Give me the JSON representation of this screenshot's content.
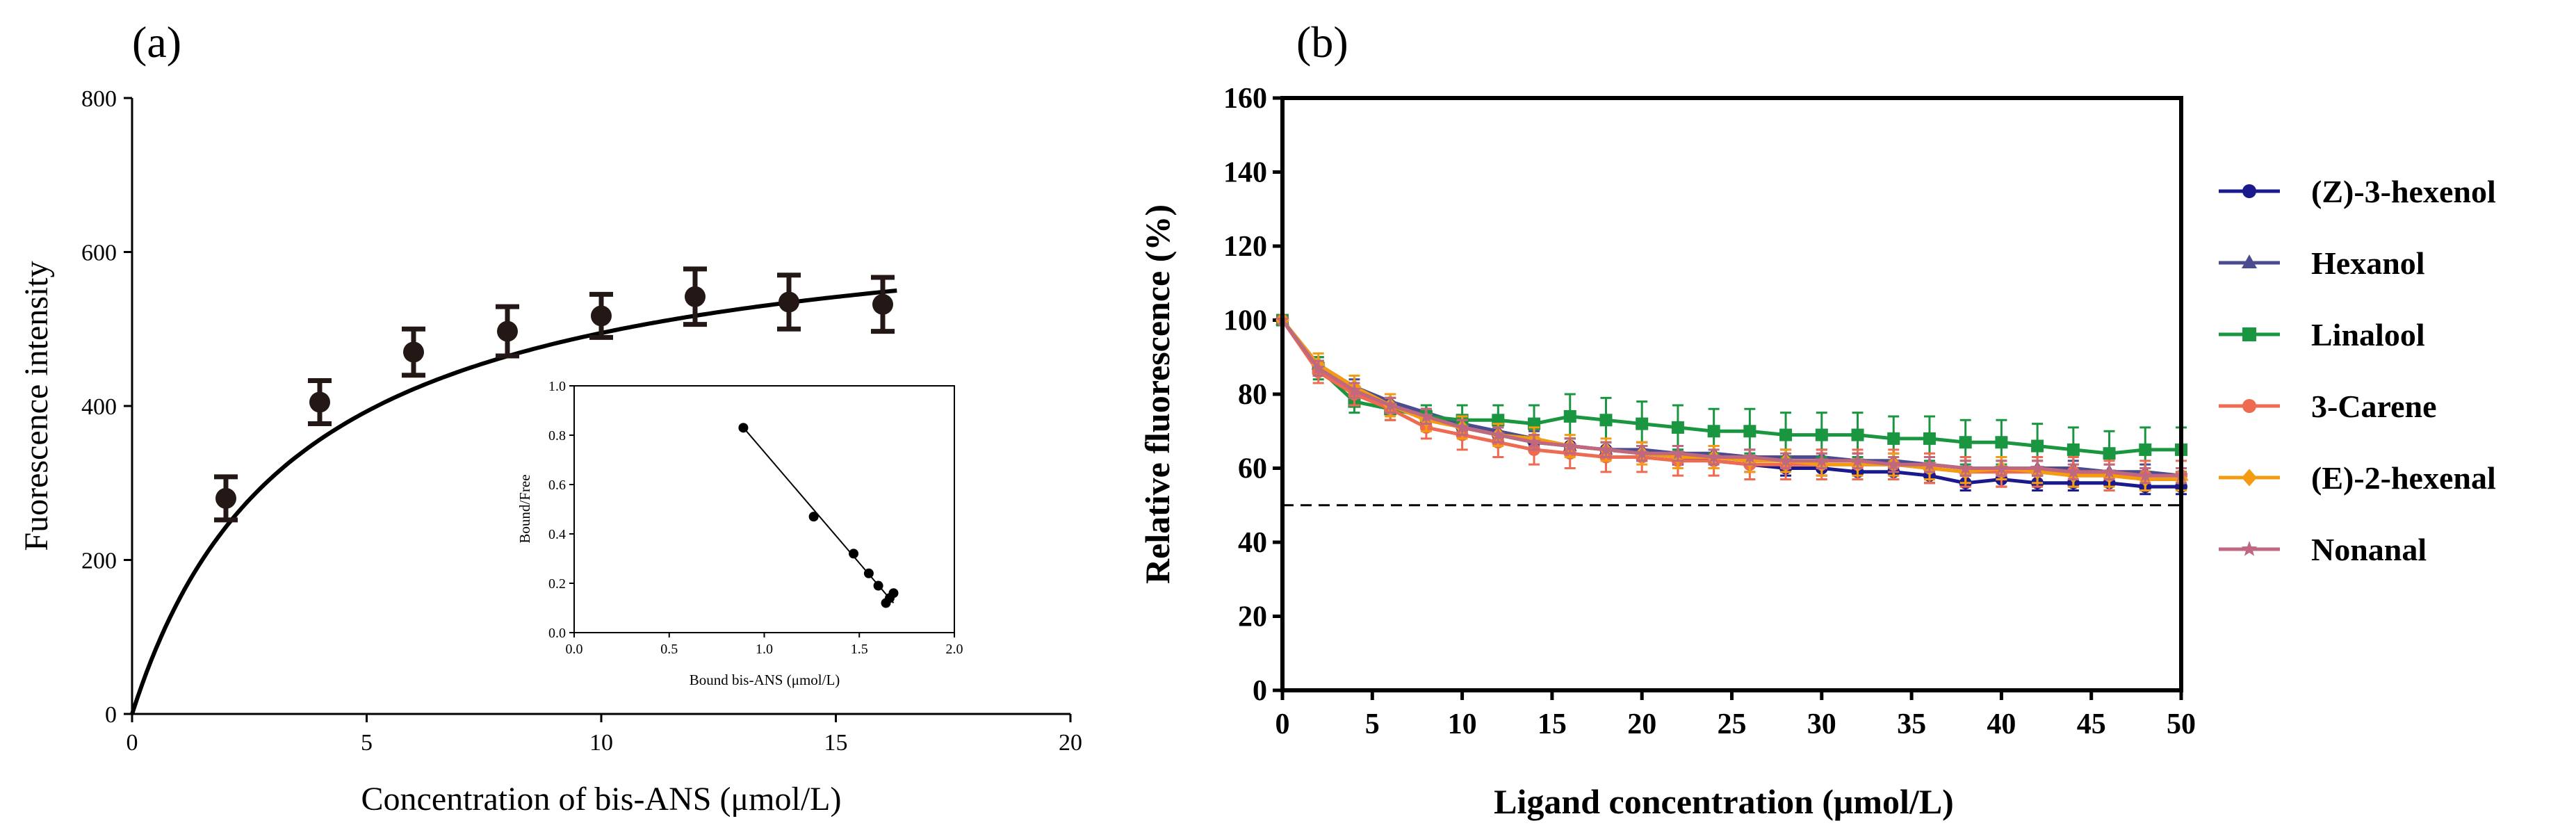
{
  "panels": {
    "a_label": "(a)",
    "b_label": "(b)"
  },
  "chart_data": [
    {
      "id": "a",
      "type": "scatter",
      "xlabel": "Concentration of bis-ANS (μmol/L)",
      "ylabel": "Fuorescence intensity",
      "xlim": [
        0,
        20
      ],
      "ylim": [
        0,
        800
      ],
      "xticks": [
        0,
        5,
        10,
        15,
        20
      ],
      "yticks": [
        0,
        200,
        400,
        600,
        800
      ],
      "series": [
        {
          "x": [
            2,
            4,
            6,
            8,
            10,
            12,
            14,
            16
          ],
          "y": [
            280,
            405,
            470,
            497,
            517,
            542,
            535,
            532
          ],
          "err": [
            28,
            28,
            30,
            32,
            28,
            36,
            35,
            35
          ]
        }
      ],
      "fit": {
        "model": "saturation",
        "bmax": 668,
        "kd": 3.5
      },
      "color": "#231815"
    },
    {
      "id": "a_inset",
      "type": "scatter",
      "xlabel": "Bound bis-ANS (μmol/L)",
      "ylabel": "Bound/Free",
      "xlim": [
        0,
        2
      ],
      "ylim": [
        0,
        1
      ],
      "xticks": [
        "0.0",
        "0.5",
        "1.0",
        "1.5",
        "2.0"
      ],
      "yticks": [
        "0.0",
        "0.2",
        "0.4",
        "0.6",
        "0.8",
        "1.0"
      ],
      "series": [
        {
          "x": [
            0.89,
            1.26,
            1.47,
            1.55,
            1.6,
            1.64,
            1.66,
            1.68
          ],
          "y": [
            0.83,
            0.47,
            0.32,
            0.24,
            0.19,
            0.12,
            0.14,
            0.16
          ]
        }
      ],
      "fit_line": {
        "x": [
          0.88,
          1.68
        ],
        "y": [
          0.84,
          0.12
        ]
      }
    },
    {
      "id": "b",
      "type": "line",
      "xlabel": "Ligand concentration (μmol/L)",
      "ylabel": "Relative fluorescence (%)",
      "xlim": [
        0,
        50
      ],
      "ylim": [
        0,
        160
      ],
      "xticks": [
        0,
        5,
        10,
        15,
        20,
        25,
        30,
        35,
        40,
        45,
        50
      ],
      "yticks": [
        0,
        20,
        40,
        60,
        80,
        100,
        120,
        140,
        160
      ],
      "reference_line_y": 50,
      "legend_position": "right",
      "x": [
        0,
        2,
        4,
        6,
        8,
        10,
        12,
        14,
        16,
        18,
        20,
        22,
        24,
        26,
        28,
        30,
        32,
        34,
        36,
        38,
        40,
        42,
        44,
        46,
        48,
        50
      ],
      "series": [
        {
          "name": "(Z)-3-hexenol",
          "color": "#1a1a8c",
          "marker": "circle",
          "values": [
            100,
            87,
            81,
            77,
            74,
            71,
            69,
            67,
            66,
            65,
            64,
            63,
            62,
            61,
            60,
            60,
            59,
            59,
            58,
            56,
            57,
            56,
            56,
            56,
            55,
            55
          ],
          "err": [
            0,
            2,
            2,
            2,
            2,
            2,
            2,
            2,
            2,
            2,
            2,
            2,
            2,
            2,
            2,
            2,
            2,
            2,
            2,
            2,
            2,
            2,
            2,
            2,
            2,
            2
          ]
        },
        {
          "name": "Hexanol",
          "color": "#4b4b8f",
          "marker": "triangle",
          "values": [
            100,
            88,
            82,
            78,
            75,
            72,
            70,
            68,
            66,
            65,
            65,
            64,
            64,
            63,
            63,
            63,
            62,
            62,
            61,
            60,
            60,
            60,
            60,
            59,
            59,
            58
          ],
          "err": [
            0,
            2,
            2,
            2,
            2,
            2,
            2,
            2,
            2,
            2,
            2,
            2,
            2,
            2,
            2,
            2,
            2,
            2,
            2,
            2,
            2,
            2,
            2,
            2,
            2,
            2
          ]
        },
        {
          "name": "Linalool",
          "color": "#1a9641",
          "marker": "square",
          "values": [
            100,
            87,
            78,
            76,
            74,
            73,
            73,
            72,
            74,
            73,
            72,
            71,
            70,
            70,
            69,
            69,
            69,
            68,
            68,
            67,
            67,
            66,
            65,
            64,
            65,
            65
          ],
          "err": [
            0,
            3,
            3,
            3,
            3,
            4,
            4,
            5,
            6,
            6,
            6,
            6,
            6,
            6,
            6,
            6,
            6,
            6,
            6,
            6,
            6,
            6,
            6,
            6,
            6,
            6
          ]
        },
        {
          "name": "3-Carene",
          "color": "#ee6a50",
          "marker": "circle",
          "values": [
            100,
            86,
            80,
            76,
            71,
            69,
            67,
            65,
            64,
            63,
            63,
            62,
            62,
            61,
            61,
            61,
            61,
            61,
            60,
            59,
            59,
            59,
            59,
            58,
            58,
            58
          ],
          "err": [
            0,
            3,
            3,
            3,
            3,
            4,
            4,
            4,
            4,
            4,
            4,
            4,
            4,
            4,
            4,
            4,
            4,
            4,
            4,
            4,
            4,
            4,
            4,
            4,
            4,
            4
          ]
        },
        {
          "name": "(E)-2-hexenal",
          "color": "#f39c12",
          "marker": "diamond",
          "values": [
            100,
            88,
            82,
            77,
            73,
            71,
            69,
            68,
            66,
            65,
            64,
            63,
            63,
            62,
            62,
            61,
            61,
            61,
            60,
            59,
            60,
            59,
            58,
            58,
            57,
            57
          ],
          "err": [
            0,
            3,
            3,
            3,
            3,
            3,
            3,
            3,
            3,
            3,
            3,
            3,
            3,
            3,
            3,
            3,
            3,
            3,
            3,
            3,
            3,
            3,
            3,
            3,
            3,
            3
          ]
        },
        {
          "name": "Nonanal",
          "color": "#c0687f",
          "marker": "star",
          "values": [
            100,
            87,
            81,
            77,
            74,
            71,
            69,
            67,
            66,
            65,
            64,
            64,
            63,
            63,
            62,
            62,
            62,
            61,
            61,
            60,
            60,
            60,
            59,
            59,
            58,
            58
          ],
          "err": [
            0,
            2,
            2,
            2,
            2,
            2,
            2,
            2,
            2,
            2,
            2,
            2,
            2,
            2,
            2,
            2,
            2,
            2,
            2,
            2,
            2,
            2,
            2,
            2,
            2,
            2
          ]
        }
      ]
    }
  ]
}
